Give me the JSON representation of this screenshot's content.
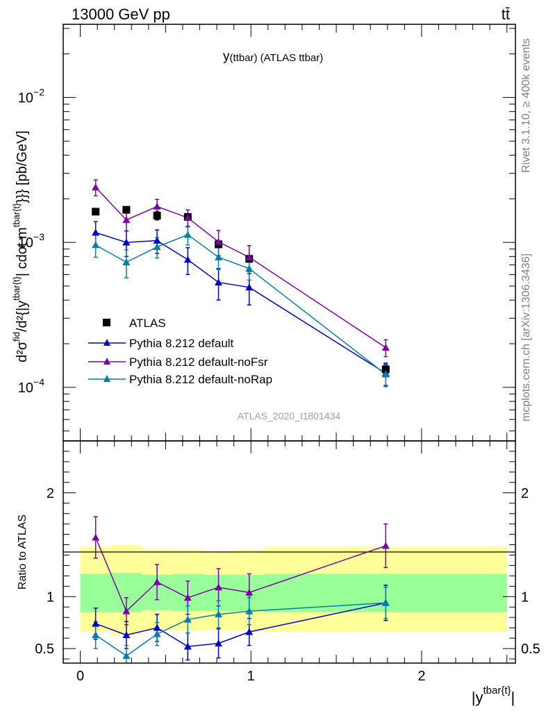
{
  "header": {
    "left": "13000 GeV pp",
    "right": "tt̄"
  },
  "side_labels": {
    "rivet": "Rivet 3.1.10, ≥ 400k events",
    "mcplots": "mcplots.cern.ch [arXiv:1306.3436]"
  },
  "colors": {
    "data": "#000000",
    "default": "#0000cc",
    "noFsr": "#7b00a8",
    "noRap": "#0080a8",
    "band_1sigma": "#99ff99",
    "band_2sigma": "#ffff99"
  },
  "chart_data": [
    {
      "type": "line",
      "panel": "main",
      "title": "y(ttbar) (ATLAS ttbar)",
      "title_main": "y",
      "title_sub": "(ttbar) (ATLAS ttbar)",
      "watermark": "ATLAS_2020_I1801434",
      "ylabel": "d²σ^fid / d²{|y^tbar{t}|} cdot m^tbar{t}}} [pb/GeV]",
      "yscale": "log",
      "ylim": [
        4.27e-05,
        0.032
      ],
      "xlim": [
        -0.1,
        2.55
      ],
      "yticks": [
        {
          "value": 0.01,
          "base": "10",
          "exp": "−2"
        },
        {
          "value": 0.001,
          "base": "10",
          "exp": "−3"
        },
        {
          "value": 0.0001,
          "base": "10",
          "exp": "−4"
        }
      ],
      "x": [
        0.09,
        0.27,
        0.45,
        0.63,
        0.81,
        0.99,
        1.79
      ],
      "series": [
        {
          "name": "ATLAS",
          "key": "data",
          "marker": "square",
          "values": [
            0.00163,
            0.00168,
            0.00153,
            0.0015,
            0.00097,
            0.00077,
            0.000133
          ],
          "errors": [
            5e-05,
            5e-05,
            0.0001,
            5e-05,
            5e-05,
            3e-05,
            1e-05
          ]
        },
        {
          "name": "Pythia 8.212 default",
          "key": "default",
          "marker": "triangle",
          "values": [
            0.00117,
            0.001,
            0.00103,
            0.00076,
            0.00053,
            0.00049,
            0.000125
          ],
          "errors": [
            0.00022,
            0.0002,
            0.00019,
            0.00016,
            0.00013,
            0.00012,
            2.2e-05
          ]
        },
        {
          "name": "Pythia 8.212 default-noFsr",
          "key": "noFsr",
          "marker": "triangle",
          "values": [
            0.0024,
            0.00143,
            0.00177,
            0.00148,
            0.00101,
            0.00079,
            0.000188
          ],
          "errors": [
            0.0003,
            0.00023,
            0.00021,
            0.0002,
            0.0002,
            0.00016,
            2.5e-05
          ]
        },
        {
          "name": "Pythia 8.212 default-noRap",
          "key": "noRap",
          "marker": "triangle",
          "values": [
            0.00096,
            0.00073,
            0.00093,
            0.00113,
            0.00079,
            0.00066,
            0.000123
          ],
          "errors": [
            0.00017,
            0.00016,
            0.00015,
            0.00017,
            0.00014,
            0.00011,
            2.2e-05
          ]
        }
      ]
    },
    {
      "type": "line",
      "panel": "ratio",
      "ylabel": "Ratio to ATLAS",
      "xlabel": "|y^tbar{t}|",
      "ylim": [
        0.36,
        2.5
      ],
      "xlim": [
        -0.1,
        2.55
      ],
      "yticks": [
        {
          "value": 0.5,
          "label": "0.5"
        },
        {
          "value": 1,
          "label": "1"
        },
        {
          "value": 2,
          "label": "2"
        }
      ],
      "xticks": [
        {
          "value": 0,
          "label": "0"
        },
        {
          "value": 1,
          "label": "1"
        },
        {
          "value": 2,
          "label": "2"
        }
      ],
      "bins": [
        {
          "lo": 0.0,
          "hi": 0.18,
          "s1": [
            0.85,
            1.22
          ],
          "s2": [
            0.66,
            1.48
          ]
        },
        {
          "lo": 0.18,
          "hi": 0.36,
          "s1": [
            0.85,
            1.23
          ],
          "s2": [
            0.63,
            1.5
          ]
        },
        {
          "lo": 0.36,
          "hi": 0.54,
          "s1": [
            0.87,
            1.21
          ],
          "s2": [
            0.68,
            1.46
          ]
        },
        {
          "lo": 0.54,
          "hi": 0.72,
          "s1": [
            0.86,
            1.22
          ],
          "s2": [
            0.67,
            1.45
          ]
        },
        {
          "lo": 0.72,
          "hi": 0.9,
          "s1": [
            0.86,
            1.21
          ],
          "s2": [
            0.68,
            1.44
          ]
        },
        {
          "lo": 0.9,
          "hi": 1.08,
          "s1": [
            0.86,
            1.21
          ],
          "s2": [
            0.68,
            1.45
          ]
        },
        {
          "lo": 1.08,
          "hi": 2.5,
          "s1": [
            0.85,
            1.22
          ],
          "s2": [
            0.66,
            1.48
          ]
        }
      ],
      "x": [
        0.09,
        0.27,
        0.45,
        0.63,
        0.81,
        0.99,
        1.79
      ],
      "series": [
        {
          "name": "Pythia 8.212 default",
          "key": "default",
          "values": [
            0.74,
            0.63,
            0.7,
            0.52,
            0.55,
            0.66,
            0.94
          ],
          "errors": [
            0.15,
            0.13,
            0.13,
            0.13,
            0.14,
            0.13,
            0.17
          ]
        },
        {
          "name": "Pythia 8.212 default-noFsr",
          "key": "noFsr",
          "values": [
            1.57,
            0.86,
            1.14,
            0.99,
            1.09,
            1.04,
            1.49
          ],
          "errors": [
            0.2,
            0.13,
            0.17,
            0.16,
            0.18,
            0.18,
            0.21
          ]
        },
        {
          "name": "Pythia 8.212 default-noRap",
          "key": "noRap",
          "values": [
            0.63,
            0.43,
            0.64,
            0.78,
            0.83,
            0.86,
            0.94
          ],
          "errors": [
            0.13,
            0.1,
            0.11,
            0.13,
            0.13,
            0.13,
            0.15
          ]
        }
      ]
    }
  ]
}
